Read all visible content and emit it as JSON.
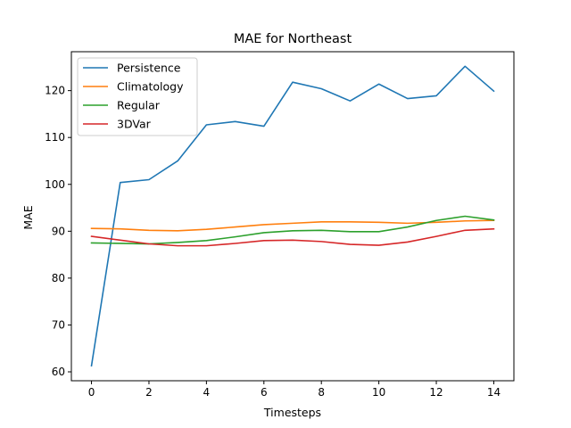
{
  "chart_data": {
    "type": "line",
    "title": "MAE for Northeast",
    "xlabel": "Timesteps",
    "ylabel": "MAE",
    "x": [
      0,
      1,
      2,
      3,
      4,
      5,
      6,
      7,
      8,
      9,
      10,
      11,
      12,
      13,
      14
    ],
    "xlim": [
      -0.7,
      14.7
    ],
    "ylim": [
      58.1,
      128.3
    ],
    "xticks": [
      0,
      2,
      4,
      6,
      8,
      10,
      12,
      14
    ],
    "yticks": [
      60,
      70,
      80,
      90,
      100,
      110,
      120
    ],
    "grid": false,
    "legend_position": "top-left",
    "series": [
      {
        "name": "Persistence",
        "color": "#1f77b4",
        "values": [
          61.3,
          100.4,
          101.0,
          105.0,
          112.7,
          113.4,
          112.4,
          121.8,
          120.4,
          117.8,
          121.4,
          118.3,
          118.9,
          125.2,
          119.9
        ]
      },
      {
        "name": "Climatology",
        "color": "#ff7f0e",
        "values": [
          90.6,
          90.5,
          90.2,
          90.1,
          90.4,
          90.9,
          91.4,
          91.7,
          92.0,
          92.0,
          91.9,
          91.7,
          91.9,
          92.2,
          92.3
        ]
      },
      {
        "name": "Regular",
        "color": "#2ca02c",
        "values": [
          87.5,
          87.4,
          87.3,
          87.6,
          88.0,
          88.8,
          89.7,
          90.1,
          90.2,
          89.9,
          89.9,
          90.9,
          92.3,
          93.2,
          92.4
        ]
      },
      {
        "name": "3DVar",
        "color": "#d62728",
        "values": [
          88.9,
          88.1,
          87.3,
          86.9,
          86.9,
          87.4,
          88.0,
          88.1,
          87.8,
          87.2,
          87.0,
          87.7,
          88.9,
          90.2,
          90.5
        ]
      }
    ]
  }
}
